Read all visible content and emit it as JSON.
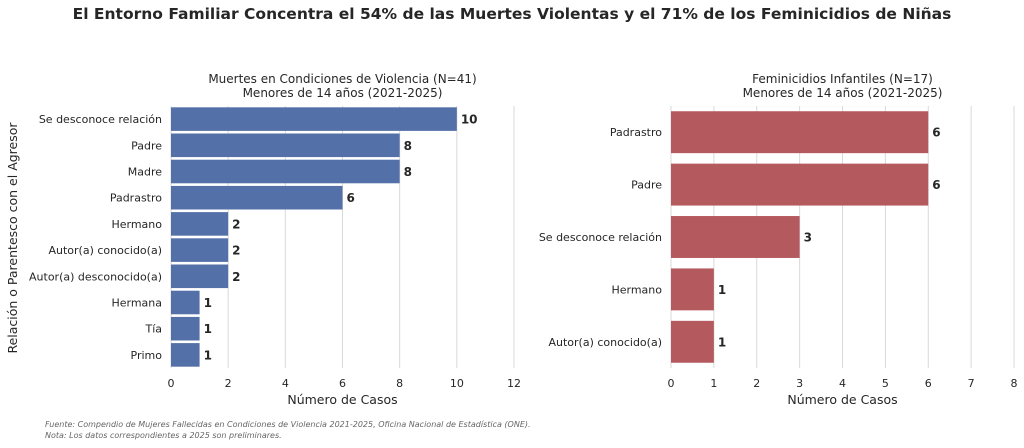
{
  "suptitle": "El Entorno Familiar Concentra el 54% de las Muertes Violentas y el 71% de los Feminicidios de Niñas",
  "ylabel": "Relación o Parentesco con el Agresor",
  "footnotes": {
    "source": "Fuente: Compendio de Mujeres Fallecidas en Condiciones de Violencia 2021-2025, Oficina Nacional de Estadística (ONE).",
    "note": "Nota: Los datos correspondientes a 2025 son preliminares."
  },
  "chart_data": [
    {
      "type": "bar",
      "orientation": "horizontal",
      "title": "Muertes en Condiciones de Violencia (N=41)",
      "subtitle": "Menores de 14 años (2021-2025)",
      "xlabel": "Número de Casos",
      "ylabel": "Relación o Parentesco con el Agresor",
      "xlim": [
        0,
        12
      ],
      "xticks": [
        0,
        2,
        4,
        6,
        8,
        10,
        12
      ],
      "grid": "x",
      "color": "#5470a8",
      "categories": [
        "Se desconoce relación",
        "Padre",
        "Madre",
        "Padrastro",
        "Hermano",
        "Autor(a) conocido(a)",
        "Autor(a) desconocido(a)",
        "Hermana",
        "Tía",
        "Primo"
      ],
      "values": [
        10,
        8,
        8,
        6,
        2,
        2,
        2,
        1,
        1,
        1
      ]
    },
    {
      "type": "bar",
      "orientation": "horizontal",
      "title": "Feminicidios Infantiles (N=17)",
      "subtitle": "Menores de 14 años (2021-2025)",
      "xlabel": "Número de Casos",
      "xlim": [
        0,
        8
      ],
      "xticks": [
        0,
        1,
        2,
        3,
        4,
        5,
        6,
        7,
        8
      ],
      "grid": "x",
      "color": "#b45a5e",
      "categories": [
        "Padrastro",
        "Padre",
        "Se desconoce relación",
        "Hermano",
        "Autor(a) conocido(a)"
      ],
      "values": [
        6,
        6,
        3,
        1,
        1
      ]
    }
  ]
}
